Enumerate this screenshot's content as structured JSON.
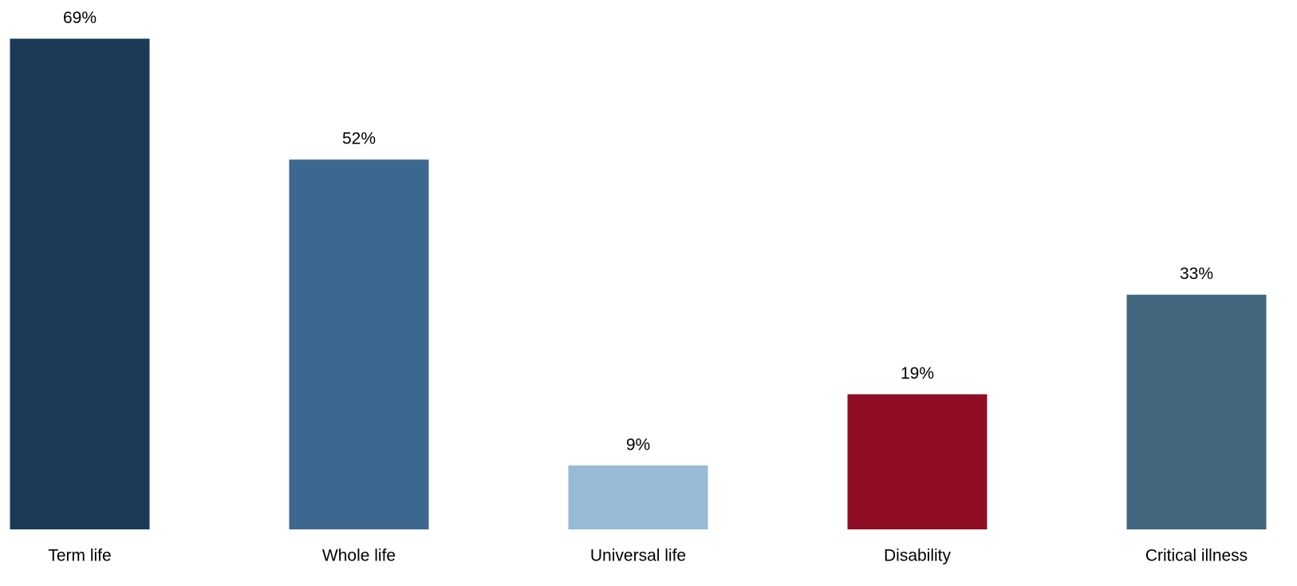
{
  "chart_data": {
    "type": "bar",
    "categories": [
      "Term life",
      "Whole life",
      "Universal life",
      "Disability",
      "Critical illness"
    ],
    "values": [
      69,
      52,
      9,
      19,
      33
    ],
    "value_labels": [
      "69%",
      "52%",
      "9%",
      "19%",
      "33%"
    ],
    "colors": [
      "#1b3a58",
      "#3c6890",
      "#97bad5",
      "#8f0e26",
      "#43667f"
    ]
  }
}
